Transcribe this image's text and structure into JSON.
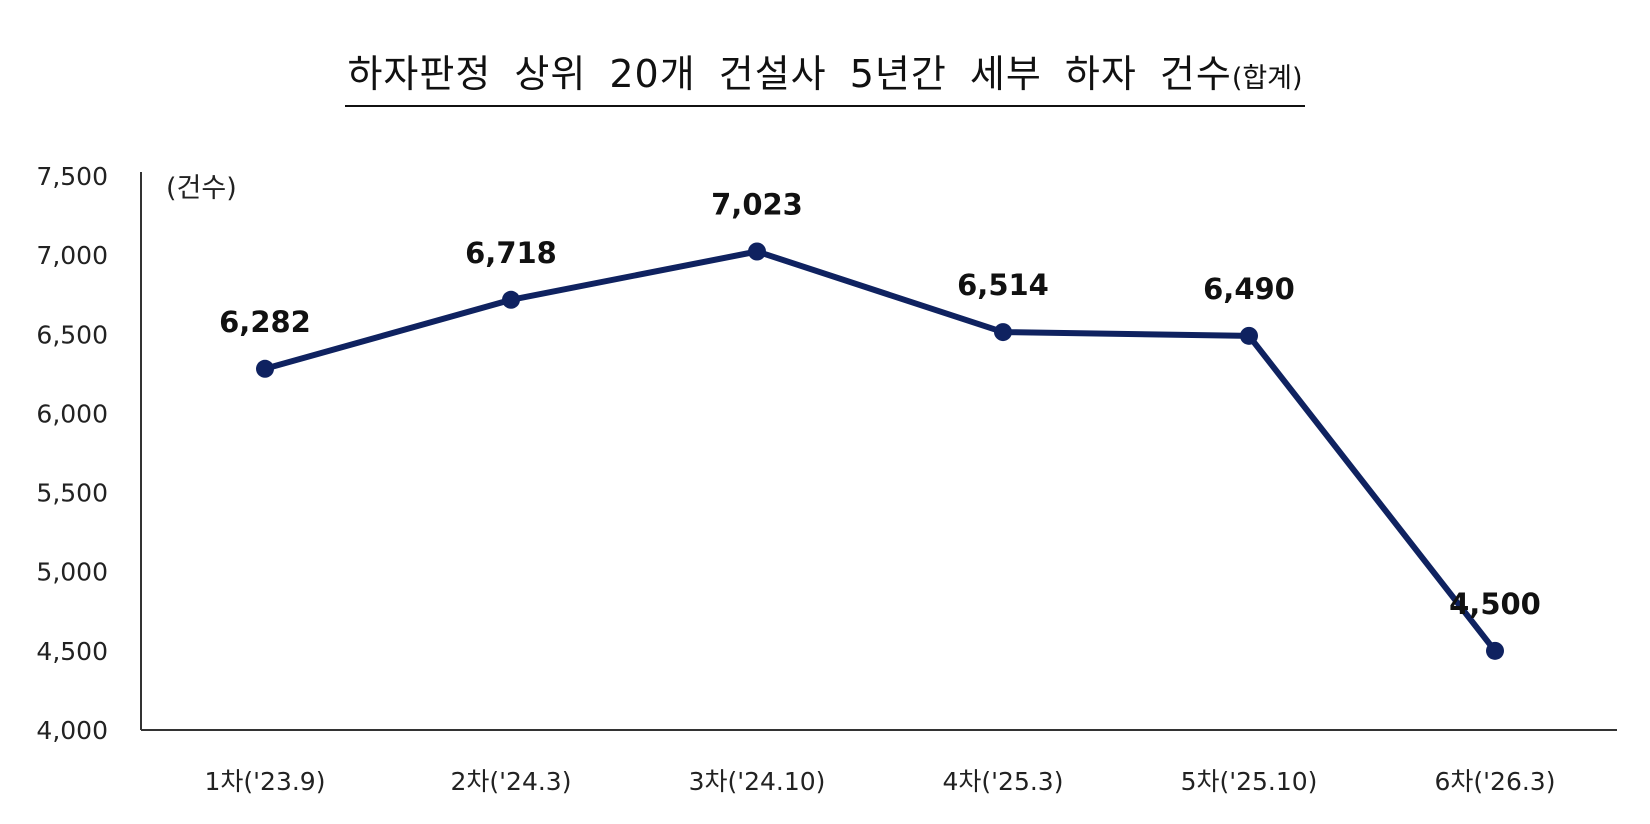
{
  "chart_data": {
    "type": "line",
    "title": "하자판정 상위 20개 건설사 5년간 세부 하자 건수",
    "title_suffix": "(합계)",
    "ylabel": "(건수)",
    "xlabel": "",
    "categories": [
      "1차('23.9)",
      "2차('24.3)",
      "3차('24.10)",
      "4차('25.3)",
      "5차('25.10)",
      "6차('26.3)"
    ],
    "series": [
      {
        "values": [
          6282,
          6718,
          7023,
          6514,
          6490,
          4500
        ],
        "value_labels": [
          "6,282",
          "6,718",
          "7,023",
          "6,514",
          "6,490",
          "4,500"
        ],
        "color": "#0f2260",
        "marker": "circle"
      }
    ],
    "ylim": [
      4000,
      7500
    ],
    "yticks": [
      4000,
      4500,
      5000,
      5500,
      6000,
      6500,
      7000,
      7500
    ],
    "ytick_labels": [
      "4,000",
      "4,500",
      "5,000",
      "5,500",
      "6,000",
      "6,500",
      "7,000",
      "7,500"
    ],
    "grid": false,
    "legend": "none",
    "axis_color": "#333333"
  }
}
